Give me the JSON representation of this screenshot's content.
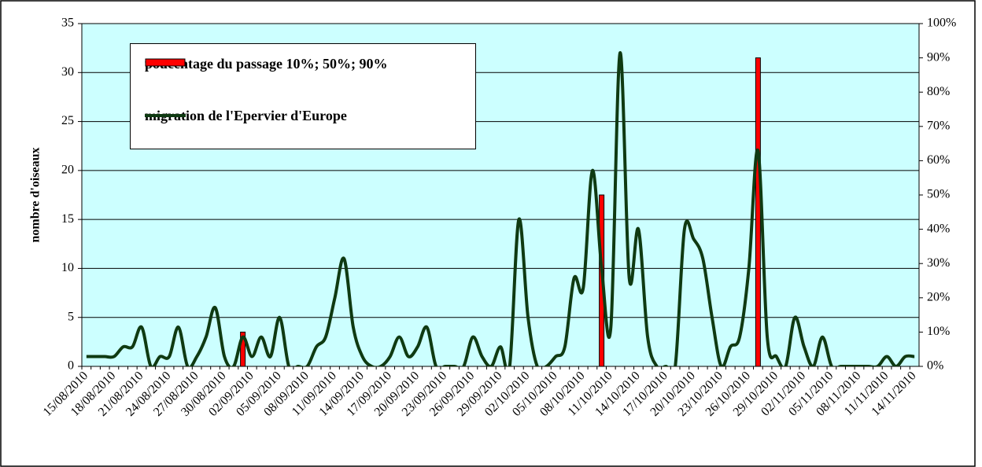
{
  "chart_data": {
    "type": "combo",
    "y_label": "nombre d'oiseaux",
    "categories": [
      "15/08/2010",
      null,
      null,
      "18/08/2010",
      null,
      null,
      "21/08/2010",
      null,
      null,
      "24/08/2010",
      null,
      null,
      "27/08/2010",
      null,
      null,
      "30/08/2010",
      null,
      null,
      "02/09/2010",
      null,
      null,
      "05/09/2010",
      null,
      null,
      "08/09/2010",
      null,
      null,
      "11/09/2010",
      null,
      null,
      "14/09/2010",
      null,
      null,
      "17/09/2010",
      null,
      null,
      "20/09/2010",
      null,
      null,
      "23/09/2010",
      null,
      null,
      "26/09/2010",
      null,
      null,
      "29/09/2010",
      null,
      null,
      "02/10/2010",
      null,
      null,
      "05/10/2010",
      null,
      null,
      "08/10/2010",
      null,
      null,
      "11/10/2010",
      null,
      null,
      "14/10/2010",
      null,
      null,
      "17/10/2010",
      null,
      null,
      "20/10/2010",
      null,
      null,
      "23/10/2010",
      null,
      null,
      "26/10/2010",
      null,
      null,
      "29/10/2010",
      null,
      null,
      "02/11/2010",
      null,
      null,
      "05/11/2010",
      null,
      null,
      "08/11/2010",
      null,
      null,
      "11/11/2010",
      null,
      null,
      "14/11/2010"
    ],
    "series": [
      {
        "name": "poucentage du passage 10%; 50%; 90%",
        "type": "bar",
        "axis": "y2",
        "color": "#ff0000",
        "values": [
          null,
          null,
          null,
          null,
          null,
          null,
          null,
          null,
          null,
          null,
          null,
          null,
          null,
          null,
          null,
          null,
          null,
          10,
          null,
          null,
          null,
          null,
          null,
          null,
          null,
          null,
          null,
          null,
          null,
          null,
          null,
          null,
          null,
          null,
          null,
          null,
          null,
          null,
          null,
          null,
          null,
          null,
          null,
          null,
          null,
          null,
          null,
          null,
          null,
          null,
          null,
          null,
          null,
          null,
          null,
          null,
          50,
          null,
          null,
          null,
          null,
          null,
          null,
          null,
          null,
          null,
          null,
          null,
          null,
          null,
          null,
          null,
          null,
          90,
          null,
          null,
          null,
          null,
          null,
          null,
          null,
          null,
          null,
          null,
          null,
          null,
          null,
          null,
          null,
          null,
          null
        ]
      },
      {
        "name": "migration de l'Epervier d'Europe",
        "type": "line",
        "color": "#0f3a12",
        "values": [
          1,
          1,
          1,
          1,
          2,
          2,
          4,
          0,
          1,
          1,
          4,
          0,
          1,
          3,
          6,
          1,
          0,
          3,
          1,
          3,
          1,
          5,
          0,
          0,
          0,
          2,
          3,
          7,
          11,
          4,
          1,
          0,
          0,
          1,
          3,
          1,
          2,
          4,
          0,
          0,
          0,
          0,
          3,
          1,
          0,
          2,
          0,
          15,
          5,
          0,
          0,
          1,
          2,
          9,
          8,
          20,
          10,
          4,
          32,
          9,
          14,
          3,
          0,
          0,
          0,
          14,
          13,
          11,
          5,
          0,
          2,
          3,
          10,
          22,
          3,
          1,
          0,
          5,
          2,
          0,
          3,
          0,
          0,
          0,
          0,
          0,
          0,
          1,
          0,
          1,
          1
        ]
      }
    ],
    "ylim": [
      0,
      35
    ],
    "yticks": [
      0,
      5,
      10,
      15,
      20,
      25,
      30,
      35
    ],
    "y2lim": [
      0,
      100
    ],
    "y2ticks": [
      {
        "value": 0,
        "label": "0%"
      },
      {
        "value": 10,
        "label": "10%"
      },
      {
        "value": 20,
        "label": "20%"
      },
      {
        "value": 30,
        "label": "30%"
      },
      {
        "value": 40,
        "label": "40%"
      },
      {
        "value": 50,
        "label": "50%"
      },
      {
        "value": 60,
        "label": "60%"
      },
      {
        "value": 70,
        "label": "70%"
      },
      {
        "value": 80,
        "label": "80%"
      },
      {
        "value": 90,
        "label": "90%"
      },
      {
        "value": 100,
        "label": "100%"
      }
    ],
    "grid": true,
    "plot_background": "#ccffff",
    "legend": "top-left"
  }
}
